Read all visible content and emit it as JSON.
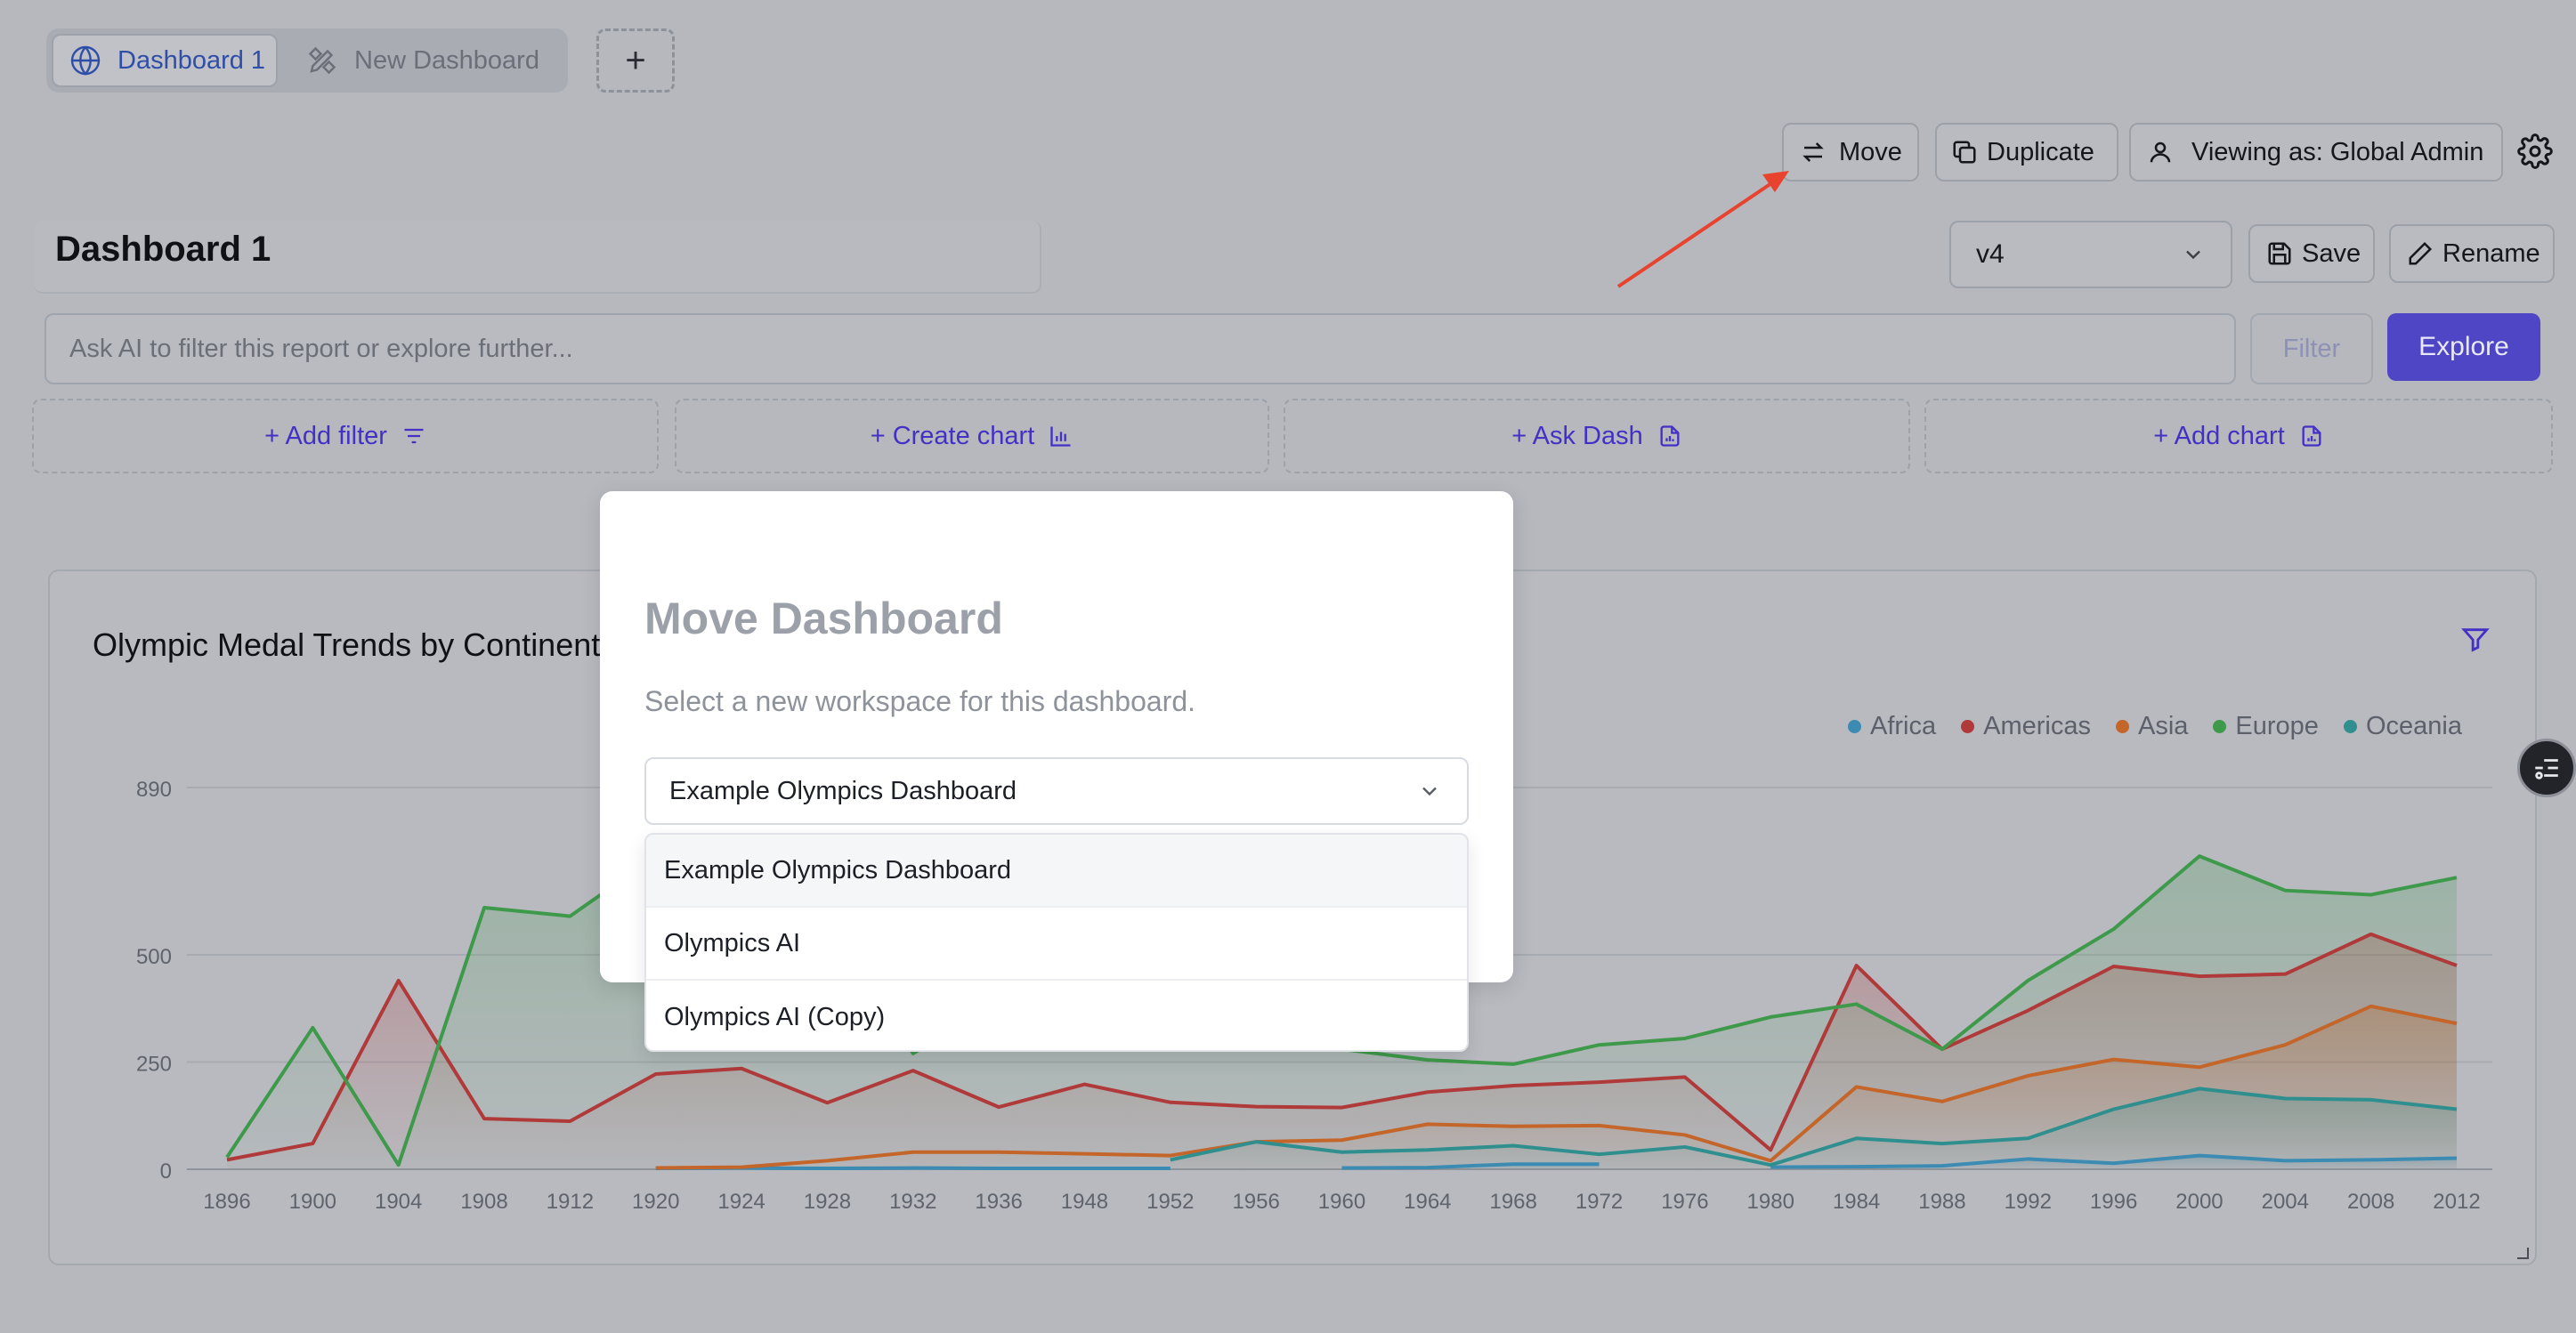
{
  "tabs": [
    {
      "label": "Dashboard 1",
      "active": true,
      "icon": "globe-icon"
    },
    {
      "label": "New Dashboard",
      "active": false,
      "icon": "pencil-ruler-icon"
    }
  ],
  "add_tab_label": "+",
  "toolbar": {
    "move_label": "Move",
    "duplicate_label": "Duplicate",
    "viewing_label": "Viewing as: Global Admin",
    "settings_icon": "gear-icon"
  },
  "dashboard": {
    "title": "Dashboard 1",
    "version": "v4",
    "save_label": "Save",
    "rename_label": "Rename"
  },
  "ask": {
    "placeholder": "Ask AI to filter this report or explore further...",
    "filter_label": "Filter",
    "explore_label": "Explore"
  },
  "actions": [
    {
      "label": "+ Add filter",
      "icon": "filter-lines-icon"
    },
    {
      "label": "+ Create chart",
      "icon": "bar-chart-icon"
    },
    {
      "label": "+ Ask Dash",
      "icon": "document-icon"
    },
    {
      "label": "+ Add chart",
      "icon": "document-icon"
    }
  ],
  "chart": {
    "title": "Olympic Medal Trends by Continent"
  },
  "chart_data": {
    "type": "area",
    "title": "Olympic Medal Trends by Continent",
    "x": [
      "1896",
      "1900",
      "1904",
      "1908",
      "1912",
      "1920",
      "1924",
      "1928",
      "1932",
      "1936",
      "1948",
      "1952",
      "1956",
      "1960",
      "1964",
      "1968",
      "1972",
      "1976",
      "1980",
      "1984",
      "1988",
      "1992",
      "1996",
      "2000",
      "2004",
      "2008",
      "2012"
    ],
    "y_ticks": [
      0,
      250,
      500,
      890
    ],
    "ylim": [
      0,
      890
    ],
    "legend_position": "top-right",
    "series": [
      {
        "name": "Africa",
        "color": "#3b8bb3",
        "values": [
          null,
          null,
          null,
          null,
          null,
          2,
          3,
          2,
          3,
          2,
          2,
          2,
          null,
          3,
          4,
          12,
          12,
          null,
          5,
          6,
          8,
          24,
          14,
          32,
          20,
          22,
          26
        ]
      },
      {
        "name": "Americas",
        "color": "#b03a3a",
        "values": [
          22,
          60,
          440,
          118,
          112,
          222,
          235,
          155,
          230,
          145,
          198,
          156,
          146,
          144,
          180,
          195,
          203,
          215,
          45,
          475,
          280,
          370,
          473,
          450,
          455,
          548,
          475
        ]
      },
      {
        "name": "Asia",
        "color": "#c4652a",
        "values": [
          null,
          null,
          null,
          null,
          null,
          3,
          5,
          20,
          40,
          40,
          36,
          32,
          64,
          68,
          105,
          100,
          102,
          80,
          20,
          192,
          158,
          218,
          256,
          238,
          290,
          380,
          340
        ]
      },
      {
        "name": "Europe",
        "color": "#3e9a4a",
        "values": [
          28,
          330,
          10,
          610,
          590,
          730,
          1000,
          600,
          270,
          390,
          500,
          320,
          410,
          280,
          255,
          245,
          290,
          305,
          355,
          385,
          280,
          440,
          560,
          730,
          650,
          640,
          680
        ]
      },
      {
        "name": "Oceania",
        "color": "#2f8f8f",
        "values": [
          null,
          null,
          null,
          null,
          null,
          null,
          null,
          null,
          null,
          null,
          null,
          22,
          64,
          40,
          45,
          55,
          35,
          52,
          10,
          72,
          60,
          72,
          140,
          188,
          165,
          162,
          140
        ]
      }
    ]
  },
  "modal": {
    "title": "Move Dashboard",
    "description": "Select a new workspace for this dashboard.",
    "selected": "Example Olympics Dashboard",
    "options": [
      "Example Olympics Dashboard",
      "Olympics AI",
      "Olympics AI (Copy)"
    ]
  },
  "annotation_color": "#e8432e"
}
